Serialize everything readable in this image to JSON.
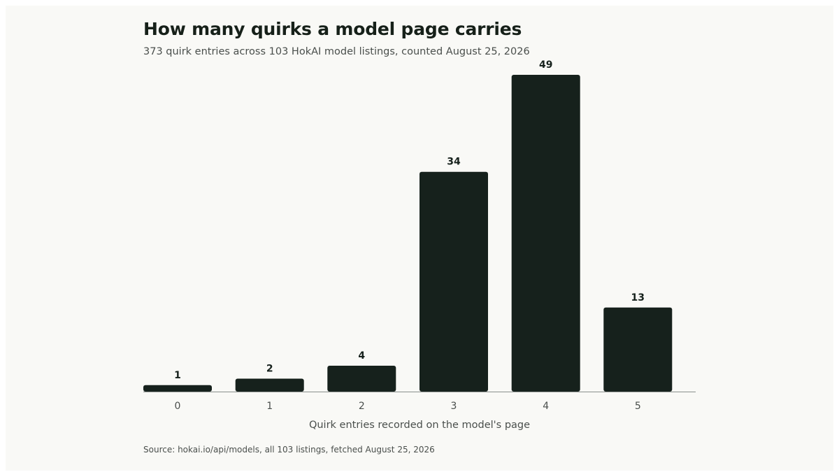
{
  "chart_data": {
    "type": "bar",
    "title": "How many quirks a model page carries",
    "subtitle": "373 quirk entries across 103 HokAI model listings, counted August 25, 2026",
    "xlabel": "Quirk entries recorded on the model's page",
    "ylabel": "",
    "categories": [
      "0",
      "1",
      "2",
      "3",
      "4",
      "5"
    ],
    "values": [
      1,
      2,
      4,
      34,
      49,
      13
    ],
    "ylim": [
      0,
      49
    ],
    "grid": false,
    "data_labels": true,
    "bar_color": "#16211c",
    "source": "Source: hokai.io/api/models, all 103 listings, fetched August 25, 2026"
  }
}
